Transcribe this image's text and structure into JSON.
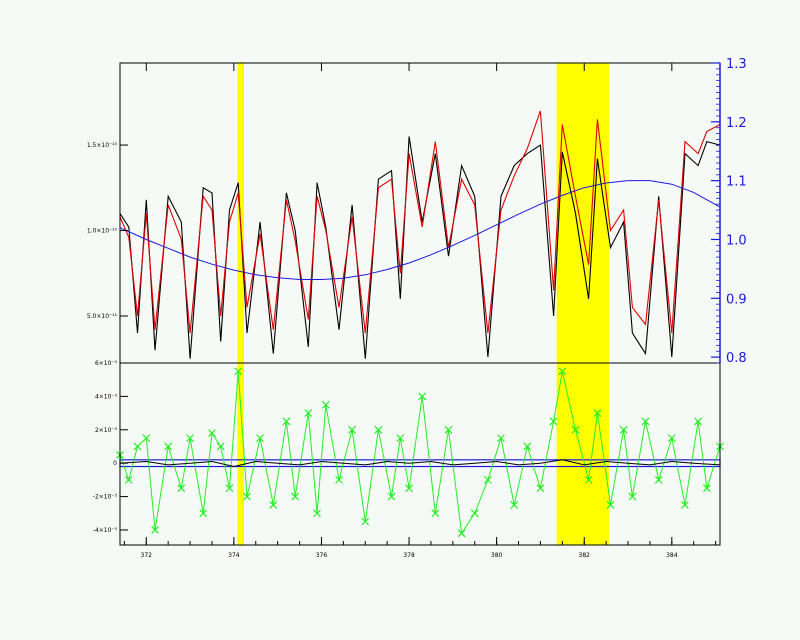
{
  "chart_data": [
    {
      "type": "line",
      "panel": "top",
      "xlim": [
        371.4,
        385.1
      ],
      "ylim": [
        2.25e-11,
        1.98e-10
      ],
      "y_ticks": [
        {
          "value": 5e-11,
          "label": "5.0×10⁻¹¹"
        },
        {
          "value": 1e-10,
          "label": "1.0×10⁻¹⁰"
        },
        {
          "value": 1.5e-10,
          "label": "1.5×10⁻¹⁰"
        }
      ],
      "y2lim": [
        0.79,
        1.3
      ],
      "y2_ticks": [
        {
          "value": 0.8,
          "label": "0.8"
        },
        {
          "value": 0.9,
          "label": "0.9"
        },
        {
          "value": 1.0,
          "label": "1.0"
        },
        {
          "value": 1.1,
          "label": "1.1"
        },
        {
          "value": 1.2,
          "label": "1.2"
        },
        {
          "value": 1.3,
          "label": "1.3"
        }
      ],
      "highlight_bands": [
        [
          374.08,
          374.23
        ],
        [
          381.37,
          382.57
        ]
      ],
      "series": [
        {
          "color": "#000000",
          "axis": "left",
          "x": [
            371.4,
            371.6,
            371.8,
            372.0,
            372.2,
            372.5,
            372.8,
            373.0,
            373.3,
            373.5,
            373.7,
            373.9,
            374.1,
            374.3,
            374.6,
            374.9,
            375.2,
            375.4,
            375.7,
            375.9,
            376.1,
            376.4,
            376.7,
            377.0,
            377.3,
            377.6,
            377.8,
            378.0,
            378.3,
            378.6,
            378.9,
            379.2,
            379.5,
            379.8,
            380.1,
            380.4,
            380.7,
            381.0,
            381.3,
            381.5,
            381.8,
            382.1,
            382.3,
            382.6,
            382.9,
            383.1,
            383.4,
            383.7,
            384.0,
            384.3,
            384.6,
            384.8,
            385.1
          ],
          "y": [
            1.1e-10,
            1.02e-10,
            4e-11,
            1.18e-10,
            3e-11,
            1.2e-10,
            1.05e-10,
            2.5e-11,
            1.25e-10,
            1.22e-10,
            3.5e-11,
            1.12e-10,
            1.28e-10,
            4e-11,
            1.05e-10,
            2.8e-11,
            1.22e-10,
            1e-10,
            3.2e-11,
            1.28e-10,
            1.02e-10,
            4.2e-11,
            1.15e-10,
            2.5e-11,
            1.3e-10,
            1.35e-10,
            6e-11,
            1.55e-10,
            1.05e-10,
            1.45e-10,
            8.5e-11,
            1.38e-10,
            1.2e-10,
            2.6e-11,
            1.2e-10,
            1.38e-10,
            1.45e-10,
            1.5e-10,
            5e-11,
            1.46e-10,
            1.1e-10,
            6e-11,
            1.42e-10,
            9e-11,
            1.05e-10,
            4e-11,
            2.8e-11,
            1.2e-10,
            2.6e-11,
            1.45e-10,
            1.38e-10,
            1.52e-10,
            1.5e-10
          ]
        },
        {
          "color": "#e00000",
          "axis": "left",
          "x": [
            371.4,
            371.6,
            371.8,
            372.0,
            372.2,
            372.5,
            372.8,
            373.0,
            373.3,
            373.5,
            373.7,
            373.9,
            374.1,
            374.3,
            374.6,
            374.9,
            375.2,
            375.4,
            375.7,
            375.9,
            376.1,
            376.4,
            376.7,
            377.0,
            377.3,
            377.6,
            377.8,
            378.0,
            378.3,
            378.6,
            378.9,
            379.2,
            379.5,
            379.8,
            380.1,
            380.4,
            380.7,
            381.0,
            381.3,
            381.5,
            381.8,
            382.1,
            382.3,
            382.6,
            382.9,
            383.1,
            383.4,
            383.7,
            384.0,
            384.3,
            384.6,
            384.8,
            385.1
          ],
          "y": [
            1.08e-10,
            9.6e-11,
            5e-11,
            1.1e-10,
            4.2e-11,
            1.15e-10,
            9.5e-11,
            4e-11,
            1.2e-10,
            1.12e-10,
            5e-11,
            1.05e-10,
            1.22e-10,
            5.5e-11,
            9.8e-11,
            4.2e-11,
            1.18e-10,
            9.4e-11,
            4.8e-11,
            1.2e-10,
            1e-10,
            5.5e-11,
            1.08e-10,
            4e-11,
            1.25e-10,
            1.3e-10,
            7.5e-11,
            1.45e-10,
            1.02e-10,
            1.52e-10,
            9e-11,
            1.3e-10,
            1.15e-10,
            4e-11,
            1.12e-10,
            1.32e-10,
            1.48e-10,
            1.7e-10,
            6.5e-11,
            1.62e-10,
            1.2e-10,
            8e-11,
            1.65e-10,
            1e-10,
            1.12e-10,
            5.5e-11,
            4.5e-11,
            1.18e-10,
            4e-11,
            1.52e-10,
            1.45e-10,
            1.58e-10,
            1.62e-10
          ]
        },
        {
          "color": "#1a1adc",
          "axis": "right",
          "x": [
            371.4,
            372.0,
            372.5,
            373.0,
            373.5,
            374.0,
            374.5,
            375.0,
            375.5,
            376.0,
            376.5,
            377.0,
            377.5,
            378.0,
            378.5,
            379.0,
            379.5,
            380.0,
            380.5,
            381.0,
            381.5,
            382.0,
            382.5,
            383.0,
            383.5,
            384.0,
            384.5,
            385.1
          ],
          "y": [
            1.02,
            1.0,
            0.985,
            0.97,
            0.958,
            0.948,
            0.94,
            0.935,
            0.932,
            0.932,
            0.934,
            0.94,
            0.949,
            0.96,
            0.974,
            0.99,
            1.007,
            1.025,
            1.043,
            1.06,
            1.075,
            1.088,
            1.096,
            1.1,
            1.1,
            1.094,
            1.08,
            1.055
          ]
        }
      ]
    },
    {
      "type": "line",
      "panel": "bottom",
      "xlim": [
        371.4,
        385.1
      ],
      "ylim": [
        -4.9e-05,
        6e-05
      ],
      "x_ticks": [
        {
          "value": 372,
          "label": "372"
        },
        {
          "value": 374,
          "label": "374"
        },
        {
          "value": 376,
          "label": "376"
        },
        {
          "value": 378,
          "label": "378"
        },
        {
          "value": 380,
          "label": "380"
        },
        {
          "value": 382,
          "label": "382"
        },
        {
          "value": 384,
          "label": "384"
        }
      ],
      "y_ticks": [
        {
          "value": 6e-05,
          "label": "6×10⁻⁵"
        },
        {
          "value": 4e-05,
          "label": "4×10⁻⁵"
        },
        {
          "value": 2e-05,
          "label": "2×10⁻⁵"
        },
        {
          "value": 0,
          "label": "0"
        },
        {
          "value": -2e-05,
          "label": "-2×10⁻⁵"
        },
        {
          "value": -4e-05,
          "label": "-4×10⁻⁵"
        }
      ],
      "highlight_bands": [
        [
          374.08,
          374.23
        ],
        [
          381.37,
          382.57
        ]
      ],
      "blue_band": [
        -2e-06,
        2e-06
      ],
      "series": [
        {
          "color": "#22ee22",
          "marker": "x",
          "x": [
            371.4,
            371.6,
            371.8,
            372.0,
            372.2,
            372.5,
            372.8,
            373.0,
            373.3,
            373.5,
            373.7,
            373.9,
            374.1,
            374.3,
            374.6,
            374.9,
            375.2,
            375.4,
            375.7,
            375.9,
            376.1,
            376.4,
            376.7,
            377.0,
            377.3,
            377.6,
            377.8,
            378.0,
            378.3,
            378.6,
            378.9,
            379.2,
            379.5,
            379.8,
            380.1,
            380.4,
            380.7,
            381.0,
            381.3,
            381.5,
            381.8,
            382.1,
            382.3,
            382.6,
            382.9,
            383.1,
            383.4,
            383.7,
            384.0,
            384.3,
            384.6,
            384.8,
            385.1
          ],
          "y": [
            5e-06,
            -1e-05,
            1e-05,
            1.5e-05,
            -4e-05,
            1e-05,
            -1.5e-05,
            1.5e-05,
            -3e-05,
            1.8e-05,
            1e-05,
            -1.5e-05,
            5.5e-05,
            -2e-05,
            1.5e-05,
            -2.5e-05,
            2.5e-05,
            -2e-05,
            3e-05,
            -3e-05,
            3.5e-05,
            -1e-05,
            2e-05,
            -3.5e-05,
            2e-05,
            -2e-05,
            1.5e-05,
            -1.5e-05,
            4e-05,
            -3e-05,
            2e-05,
            -4.2e-05,
            -3e-05,
            -1e-05,
            1.5e-05,
            -2.5e-05,
            1e-05,
            -1.5e-05,
            2.5e-05,
            5.5e-05,
            2e-05,
            -1e-05,
            3e-05,
            -2.5e-05,
            2e-05,
            -2e-05,
            2.5e-05,
            -1e-05,
            1.5e-05,
            -2.5e-05,
            2.5e-05,
            -1.5e-05,
            1e-05
          ]
        },
        {
          "color": "#000000",
          "x": [
            371.4,
            372.0,
            372.5,
            373.0,
            373.5,
            374.0,
            374.5,
            375.0,
            375.5,
            376.0,
            376.5,
            377.0,
            377.5,
            378.0,
            378.5,
            379.0,
            379.5,
            380.0,
            380.5,
            381.0,
            381.5,
            382.0,
            382.5,
            383.0,
            383.5,
            384.0,
            384.5,
            385.1
          ],
          "y": [
            0,
            1e-06,
            -1e-06,
            0,
            1e-06,
            -2e-06,
            1e-06,
            0,
            -1e-06,
            1e-06,
            0,
            -1e-06,
            1e-06,
            0,
            1e-06,
            -1e-06,
            0,
            1e-06,
            -1e-06,
            0,
            2e-06,
            -1e-06,
            1e-06,
            0,
            -1e-06,
            1e-06,
            0,
            -1e-06
          ]
        }
      ]
    }
  ]
}
